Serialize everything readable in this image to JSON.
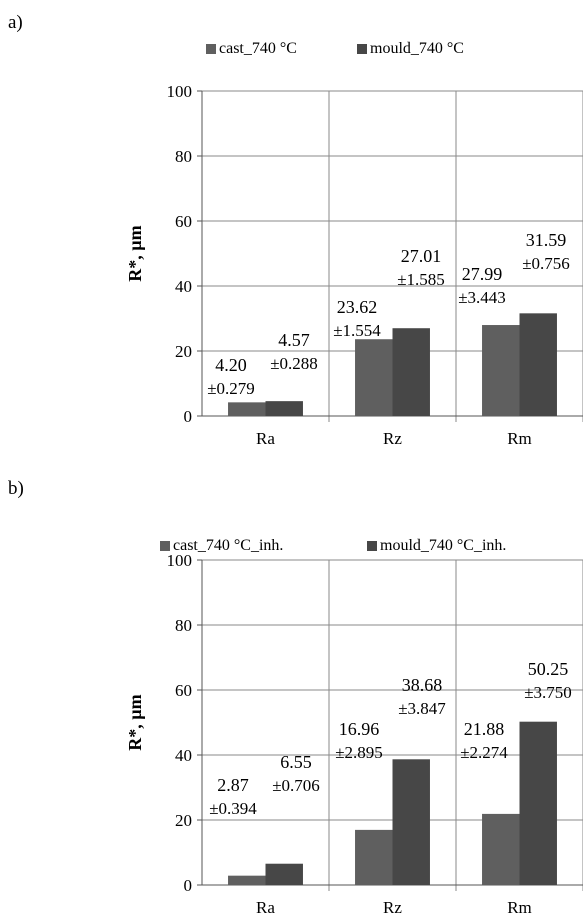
{
  "chart_data": [
    {
      "panel": "a)",
      "type": "bar",
      "categories": [
        "Ra",
        "Rz",
        "Rm"
      ],
      "series": [
        {
          "name": "cast_740 °C",
          "values": [
            4.2,
            23.62,
            27.99
          ],
          "errors": [
            0.279,
            1.554,
            3.443
          ],
          "labels": [
            "4.20",
            "23.62",
            "27.99"
          ],
          "err_labels": [
            "±0.279",
            "±1.554",
            "±3.443"
          ],
          "color": "#5f5f5f"
        },
        {
          "name": "mould_740 °C",
          "values": [
            4.57,
            27.01,
            31.59
          ],
          "errors": [
            0.288,
            1.585,
            0.756
          ],
          "labels": [
            "4.57",
            "27.01",
            "31.59"
          ],
          "err_labels": [
            "±0.288",
            "±1.585",
            "±0.756"
          ],
          "color": "#474747"
        }
      ],
      "ylabel": "R*, µm",
      "yticks": [
        "0",
        "20",
        "40",
        "60",
        "80",
        "100"
      ],
      "ylim": [
        0,
        100
      ],
      "grid": true,
      "legend": "top"
    },
    {
      "panel": "b)",
      "type": "bar",
      "categories": [
        "Ra",
        "Rz",
        "Rm"
      ],
      "series": [
        {
          "name": "cast_740 °C_inh.",
          "values": [
            2.87,
            16.96,
            21.88
          ],
          "errors": [
            0.394,
            2.895,
            2.274
          ],
          "labels": [
            "2.87",
            "16.96",
            "21.88"
          ],
          "err_labels": [
            "±0.394",
            "±2.895",
            "±2.274"
          ],
          "color": "#5f5f5f"
        },
        {
          "name": "mould_740 °C_inh.",
          "values": [
            6.55,
            38.68,
            50.25
          ],
          "errors": [
            0.706,
            3.847,
            3.75
          ],
          "labels": [
            "6.55",
            "38.68",
            "50.25"
          ],
          "err_labels": [
            "±0.706",
            "±3.847",
            "±3.750"
          ],
          "color": "#474747"
        }
      ],
      "ylabel": "R*, µm",
      "yticks": [
        "0",
        "20",
        "40",
        "60",
        "80",
        "100"
      ],
      "ylim": [
        0,
        100
      ],
      "grid": true,
      "legend": "top"
    }
  ]
}
